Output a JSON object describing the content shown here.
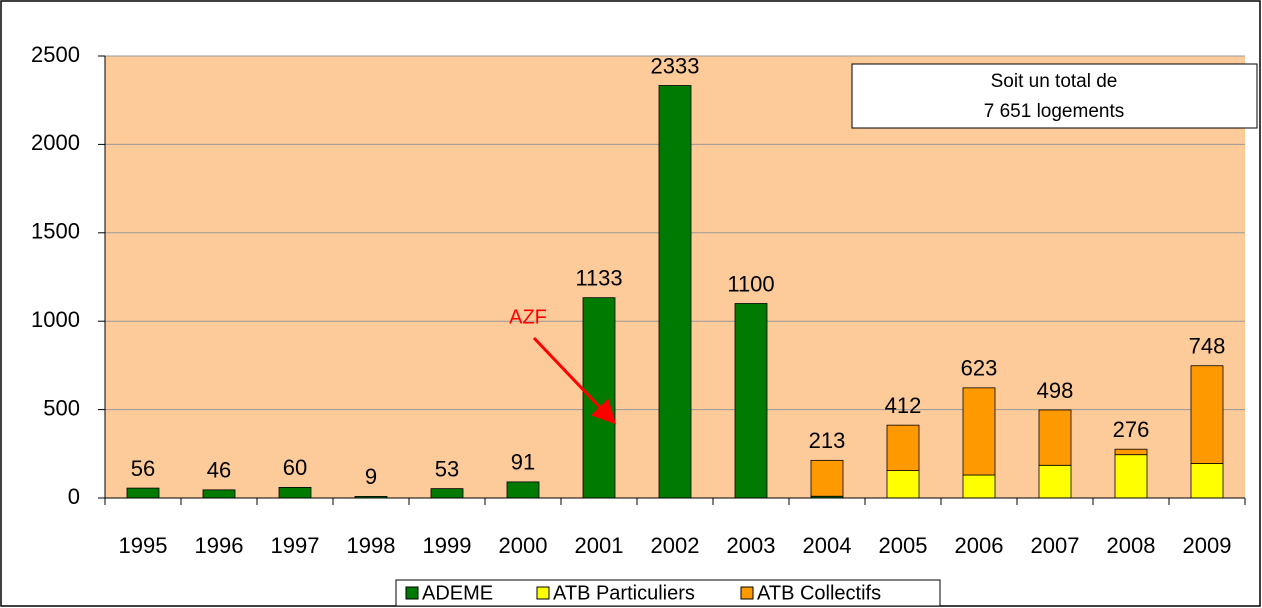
{
  "chart_data": {
    "type": "stacked_bar",
    "categories": [
      "1995",
      "1996",
      "1997",
      "1998",
      "1999",
      "2000",
      "2001",
      "2002",
      "2003",
      "2004",
      "2005",
      "2006",
      "2007",
      "2008",
      "2009"
    ],
    "series": [
      {
        "name": "ADEME",
        "color": "#007a00",
        "values": [
          56,
          46,
          60,
          9,
          53,
          91,
          1133,
          2333,
          1100,
          10,
          0,
          0,
          0,
          0,
          0
        ]
      },
      {
        "name": "ATB Particuliers",
        "color": "#ffff00",
        "values": [
          0,
          0,
          0,
          0,
          0,
          0,
          0,
          0,
          0,
          0,
          155,
          130,
          185,
          245,
          195
        ]
      },
      {
        "name": "ATB Collectifs",
        "color": "#ff9900",
        "values": [
          0,
          0,
          0,
          0,
          0,
          0,
          0,
          0,
          0,
          203,
          257,
          493,
          313,
          31,
          553
        ]
      }
    ],
    "total_labels": [
      56,
      46,
      60,
      9,
      53,
      91,
      1133,
      2333,
      1100,
      213,
      412,
      623,
      498,
      276,
      748
    ],
    "ylim": [
      0,
      2500
    ],
    "yticks": [
      0,
      500,
      1000,
      1500,
      2000,
      2500
    ],
    "grid": true,
    "annotations": {
      "total_line1": "Soit un total de",
      "total_line2": "7 651 logements",
      "event": "AZF"
    }
  }
}
